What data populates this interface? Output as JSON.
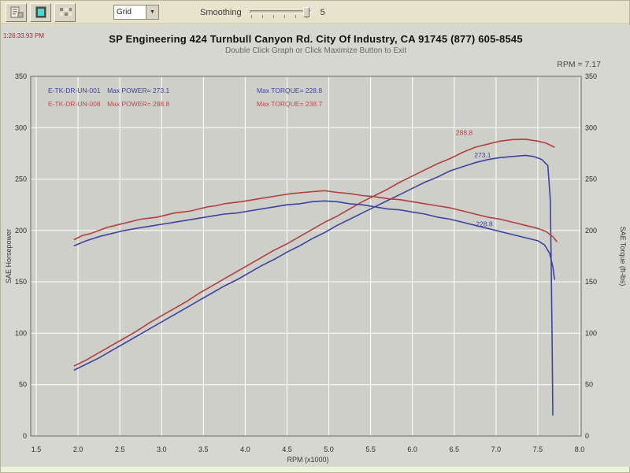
{
  "toolbar": {
    "combo": {
      "value": "Grid"
    },
    "smoothing": {
      "label": "Smoothing",
      "value": "5"
    },
    "icon_colors": {
      "screen": "#49d8d4"
    }
  },
  "header": {
    "timestamp": "1:26:33.93 PM",
    "title": "SP Engineering 424 Turnbull Canyon Rd. City Of Industry, CA 91745 (877) 605-8545",
    "subtitle": "Double Click Graph or Click Maximize Button to Exit",
    "cursor_readout": "RPM = 7.17"
  },
  "chart_data": {
    "type": "line",
    "title": "",
    "xlabel": "RPM (x1000)",
    "ylabel_left": "SAE Horsepower",
    "ylabel_right": "SAE Torque (ft-lbs)",
    "xlim": [
      1.5,
      8.0
    ],
    "xtick_step": 0.5,
    "ylim": [
      0,
      350
    ],
    "ytick_step": 50,
    "grid": true,
    "colors": {
      "run_stock": "#3d43a0",
      "run_mod": "#b04040",
      "plot_bg": "#cfcfca",
      "grid_line": "#ffffff",
      "border": "#7b7b73"
    },
    "legend": [
      {
        "run": "E-TK-DR-UN-001",
        "max_power": "Max POWER= 273.1",
        "max_torque": "Max TORQUE= 228.8",
        "color": "#3d43a0"
      },
      {
        "run": "E-TK-DR-UN-008",
        "max_power": "Max POWER= 288.8",
        "max_torque": "Max TORQUE= 238.7",
        "color": "#c04848"
      }
    ],
    "series": [
      {
        "name": "Run 008 SAE Horsepower",
        "color": "#b04040",
        "points": [
          [
            1.95,
            68
          ],
          [
            2.1,
            74
          ],
          [
            2.25,
            81
          ],
          [
            2.4,
            88
          ],
          [
            2.55,
            95
          ],
          [
            2.7,
            102
          ],
          [
            2.85,
            110
          ],
          [
            3.0,
            117
          ],
          [
            3.15,
            124
          ],
          [
            3.3,
            131
          ],
          [
            3.45,
            139
          ],
          [
            3.6,
            146
          ],
          [
            3.75,
            153
          ],
          [
            3.9,
            160
          ],
          [
            4.05,
            167
          ],
          [
            4.2,
            174
          ],
          [
            4.35,
            181
          ],
          [
            4.5,
            187
          ],
          [
            4.65,
            194
          ],
          [
            4.8,
            201
          ],
          [
            4.95,
            208
          ],
          [
            5.1,
            214
          ],
          [
            5.25,
            221
          ],
          [
            5.4,
            228
          ],
          [
            5.55,
            234
          ],
          [
            5.7,
            240
          ],
          [
            5.85,
            247
          ],
          [
            6.0,
            253
          ],
          [
            6.15,
            259
          ],
          [
            6.3,
            265
          ],
          [
            6.45,
            270
          ],
          [
            6.6,
            276
          ],
          [
            6.75,
            281
          ],
          [
            6.9,
            284
          ],
          [
            7.05,
            287
          ],
          [
            7.2,
            288.5
          ],
          [
            7.35,
            288.8
          ],
          [
            7.5,
            287
          ],
          [
            7.6,
            285
          ],
          [
            7.7,
            281
          ]
        ]
      },
      {
        "name": "Run 001 SAE Horsepower",
        "color": "#3d43a0",
        "points": [
          [
            1.95,
            64
          ],
          [
            2.1,
            70
          ],
          [
            2.25,
            76
          ],
          [
            2.4,
            83
          ],
          [
            2.55,
            90
          ],
          [
            2.7,
            97
          ],
          [
            2.85,
            104
          ],
          [
            3.0,
            111
          ],
          [
            3.15,
            118
          ],
          [
            3.3,
            125
          ],
          [
            3.45,
            132
          ],
          [
            3.6,
            139
          ],
          [
            3.75,
            146
          ],
          [
            3.9,
            152
          ],
          [
            4.05,
            159
          ],
          [
            4.2,
            166
          ],
          [
            4.35,
            172
          ],
          [
            4.5,
            179
          ],
          [
            4.65,
            185
          ],
          [
            4.8,
            192
          ],
          [
            4.95,
            198
          ],
          [
            5.1,
            205
          ],
          [
            5.25,
            211
          ],
          [
            5.4,
            217
          ],
          [
            5.55,
            223
          ],
          [
            5.7,
            229
          ],
          [
            5.85,
            235
          ],
          [
            6.0,
            241
          ],
          [
            6.15,
            247
          ],
          [
            6.3,
            252
          ],
          [
            6.45,
            258
          ],
          [
            6.6,
            262
          ],
          [
            6.75,
            266
          ],
          [
            6.9,
            269
          ],
          [
            7.05,
            271
          ],
          [
            7.2,
            272
          ],
          [
            7.35,
            273.1
          ],
          [
            7.45,
            272
          ],
          [
            7.55,
            269
          ],
          [
            7.62,
            263
          ],
          [
            7.65,
            230
          ],
          [
            7.66,
            170
          ],
          [
            7.67,
            100
          ],
          [
            7.68,
            20
          ]
        ]
      },
      {
        "name": "Run 008 SAE Torque",
        "color": "#b04040",
        "points": [
          [
            1.95,
            191
          ],
          [
            2.05,
            195
          ],
          [
            2.15,
            197
          ],
          [
            2.25,
            200
          ],
          [
            2.35,
            203
          ],
          [
            2.45,
            205
          ],
          [
            2.55,
            207
          ],
          [
            2.65,
            209
          ],
          [
            2.75,
            211
          ],
          [
            2.85,
            212
          ],
          [
            2.95,
            213
          ],
          [
            3.05,
            215
          ],
          [
            3.15,
            217
          ],
          [
            3.25,
            218
          ],
          [
            3.35,
            219
          ],
          [
            3.45,
            221
          ],
          [
            3.55,
            223
          ],
          [
            3.65,
            224
          ],
          [
            3.75,
            226
          ],
          [
            3.85,
            227
          ],
          [
            3.95,
            228
          ],
          [
            4.1,
            230
          ],
          [
            4.25,
            232
          ],
          [
            4.4,
            234
          ],
          [
            4.55,
            236
          ],
          [
            4.7,
            237
          ],
          [
            4.85,
            238
          ],
          [
            4.95,
            238.7
          ],
          [
            5.1,
            237
          ],
          [
            5.25,
            236
          ],
          [
            5.4,
            234
          ],
          [
            5.55,
            233
          ],
          [
            5.7,
            231
          ],
          [
            5.85,
            230
          ],
          [
            6.0,
            228
          ],
          [
            6.15,
            226
          ],
          [
            6.3,
            224
          ],
          [
            6.45,
            222
          ],
          [
            6.6,
            219
          ],
          [
            6.75,
            216
          ],
          [
            6.9,
            213
          ],
          [
            7.05,
            211
          ],
          [
            7.2,
            208
          ],
          [
            7.35,
            205
          ],
          [
            7.5,
            202
          ],
          [
            7.6,
            199
          ],
          [
            7.68,
            194
          ],
          [
            7.73,
            189
          ]
        ]
      },
      {
        "name": "Run 001 SAE Torque",
        "color": "#3d43a0",
        "points": [
          [
            1.95,
            185
          ],
          [
            2.1,
            190
          ],
          [
            2.25,
            194
          ],
          [
            2.4,
            197
          ],
          [
            2.55,
            200
          ],
          [
            2.7,
            202
          ],
          [
            2.85,
            204
          ],
          [
            3.0,
            206
          ],
          [
            3.15,
            208
          ],
          [
            3.3,
            210
          ],
          [
            3.45,
            212
          ],
          [
            3.6,
            214
          ],
          [
            3.75,
            216
          ],
          [
            3.9,
            217
          ],
          [
            4.05,
            219
          ],
          [
            4.2,
            221
          ],
          [
            4.35,
            223
          ],
          [
            4.5,
            225
          ],
          [
            4.65,
            226
          ],
          [
            4.8,
            228
          ],
          [
            4.95,
            228.8
          ],
          [
            5.1,
            228
          ],
          [
            5.25,
            226
          ],
          [
            5.4,
            225
          ],
          [
            5.55,
            223
          ],
          [
            5.7,
            221
          ],
          [
            5.85,
            220
          ],
          [
            6.0,
            218
          ],
          [
            6.15,
            216
          ],
          [
            6.3,
            213
          ],
          [
            6.45,
            211
          ],
          [
            6.6,
            208
          ],
          [
            6.75,
            205
          ],
          [
            6.9,
            202
          ],
          [
            7.05,
            199
          ],
          [
            7.2,
            196
          ],
          [
            7.35,
            193
          ],
          [
            7.5,
            190
          ],
          [
            7.58,
            186
          ],
          [
            7.64,
            178
          ],
          [
            7.68,
            165
          ],
          [
            7.7,
            152
          ]
        ]
      }
    ],
    "annotations": [
      {
        "rpm": 6.52,
        "value": 293,
        "text": "288.8",
        "color": "#c04848"
      },
      {
        "rpm": 6.74,
        "value": 271,
        "text": "273.1",
        "color": "#3d43a0"
      },
      {
        "rpm": 6.76,
        "value": 204,
        "text": "228.8",
        "color": "#3d43a0"
      }
    ]
  }
}
